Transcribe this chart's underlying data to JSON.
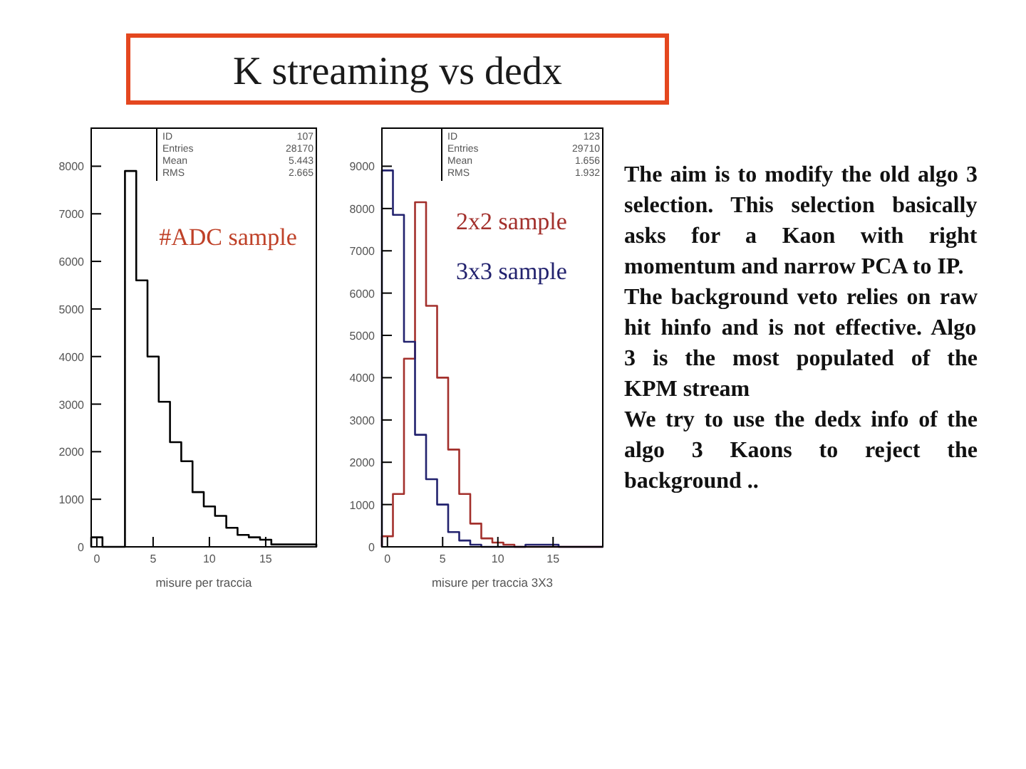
{
  "chart_data": [
    {
      "type": "histogram",
      "title": "K streaming vs dedx",
      "xlabel": "misure per traccia",
      "bins": [
        -0.5,
        0.5,
        1.5,
        2.5,
        3.5,
        4.5,
        5.5,
        6.5,
        7.5,
        8.5,
        9.5,
        10.5,
        11.5,
        12.5,
        13.5,
        14.5,
        15.5,
        16.5,
        17.5,
        18.5,
        19.5
      ],
      "values": [
        200,
        0,
        0,
        7900,
        5600,
        4000,
        3050,
        2200,
        1800,
        1150,
        850,
        650,
        400,
        250,
        200,
        150,
        50,
        50,
        50,
        50
      ],
      "color": "#000000",
      "xlim": [
        -0.5,
        19.5
      ],
      "ylim": [
        0,
        8800
      ],
      "xticks": [
        0,
        5,
        10,
        15
      ],
      "yticks": [
        0,
        1000,
        2000,
        3000,
        4000,
        5000,
        6000,
        7000,
        8000
      ],
      "annotations": [
        "ID",
        "107",
        "Entries",
        "28170",
        "Mean",
        "5.443",
        "RMS",
        "2.665",
        "#ADC sample"
      ]
    },
    {
      "type": "histogram",
      "xlabel": "misure per traccia 3X3",
      "bins": [
        -0.5,
        0.5,
        1.5,
        2.5,
        3.5,
        4.5,
        5.5,
        6.5,
        7.5,
        8.5,
        9.5,
        10.5,
        11.5,
        12.5,
        13.5,
        14.5,
        15.5,
        16.5,
        17.5,
        18.5,
        19.5
      ],
      "series": [
        {
          "name": "2x2 sample",
          "color": "#a3302c",
          "values": [
            250,
            1250,
            4450,
            8150,
            5700,
            4000,
            2300,
            1250,
            550,
            200,
            100,
            50,
            0,
            0,
            0,
            0,
            0,
            0,
            0,
            0
          ]
        },
        {
          "name": "3x3 sample",
          "color": "#22226e",
          "values": [
            8900,
            7850,
            4850,
            2650,
            1600,
            1000,
            350,
            150,
            50,
            0,
            0,
            0,
            0,
            50,
            50,
            50,
            0,
            0,
            0,
            0
          ]
        }
      ],
      "xlim": [
        -0.5,
        19.5
      ],
      "ylim": [
        0,
        9900
      ],
      "xticks": [
        0,
        5,
        10,
        15
      ],
      "yticks": [
        0,
        1000,
        2000,
        3000,
        4000,
        5000,
        6000,
        7000,
        8000,
        9000
      ],
      "annotations": [
        "ID",
        "123",
        "Entries",
        "29710",
        "Mean",
        "1.656",
        "RMS",
        "1.932"
      ]
    },
    {
      "type": "other",
      "annotations": [
        "The aim is to modify the old algo 3 selection. This selection basically asks for a Kaon with right momentum and narrow PCA to IP.",
        "The background veto relies on raw hit hinfo and is not effective. Algo 3 is the most populated of the KPM stream",
        "We try to use the dedx info of the algo 3 Kaons to reject the background .."
      ]
    }
  ]
}
